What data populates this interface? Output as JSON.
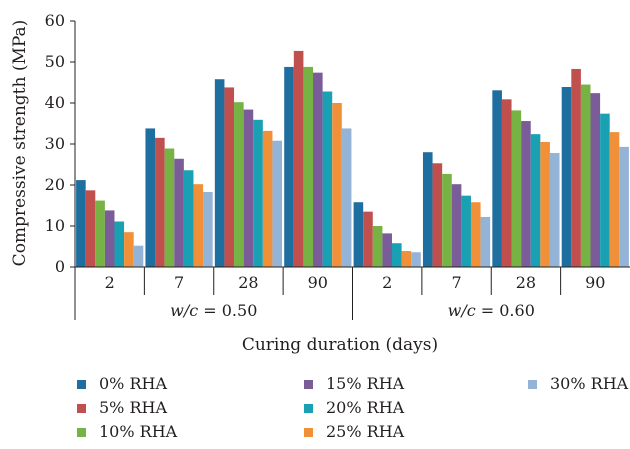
{
  "chart_data": {
    "type": "bar",
    "title": "",
    "ylabel": "Compressive strength (MPa)",
    "xlabel": "Curing duration (days)",
    "ylim": [
      0,
      60
    ],
    "yticks": [
      0,
      10,
      20,
      30,
      40,
      50,
      60
    ],
    "groups": [
      {
        "label_prefix": "w/c",
        "label_value": " = 0.50",
        "categories": [
          "2",
          "7",
          "28",
          "90"
        ]
      },
      {
        "label_prefix": "w/c",
        "label_value": " = 0.60",
        "categories": [
          "2",
          "7",
          "28",
          "90"
        ]
      }
    ],
    "categories": [
      "2",
      "7",
      "28",
      "90",
      "2",
      "7",
      "28",
      "90"
    ],
    "series": [
      {
        "name": "0% RHA",
        "color": "#1f6ea0",
        "values": [
          21.2,
          33.8,
          45.8,
          48.8,
          15.8,
          28.0,
          43.1,
          43.9
        ]
      },
      {
        "name": "5% RHA",
        "color": "#c0504d",
        "values": [
          18.7,
          31.5,
          43.8,
          52.7,
          13.5,
          25.3,
          40.9,
          48.3
        ]
      },
      {
        "name": "10% RHA",
        "color": "#77b244",
        "values": [
          16.2,
          28.9,
          40.2,
          48.8,
          10.0,
          22.7,
          38.2,
          44.5
        ]
      },
      {
        "name": "15% RHA",
        "color": "#7a5c99",
        "values": [
          13.8,
          26.4,
          38.4,
          47.4,
          8.2,
          20.2,
          35.6,
          42.4
        ]
      },
      {
        "name": "20% RHA",
        "color": "#1aa0b3",
        "values": [
          11.1,
          23.6,
          35.9,
          42.8,
          5.8,
          17.4,
          32.4,
          37.4
        ]
      },
      {
        "name": "25% RHA",
        "color": "#f0913a",
        "values": [
          8.5,
          20.2,
          33.2,
          40.0,
          3.9,
          15.8,
          30.5,
          32.9
        ]
      },
      {
        "name": "30% RHA",
        "color": "#94b4d7",
        "values": [
          5.2,
          18.3,
          30.8,
          33.8,
          3.6,
          12.2,
          27.8,
          29.3
        ]
      }
    ],
    "legend": {
      "placement": "bottom",
      "columns": 3
    },
    "grid": false
  }
}
